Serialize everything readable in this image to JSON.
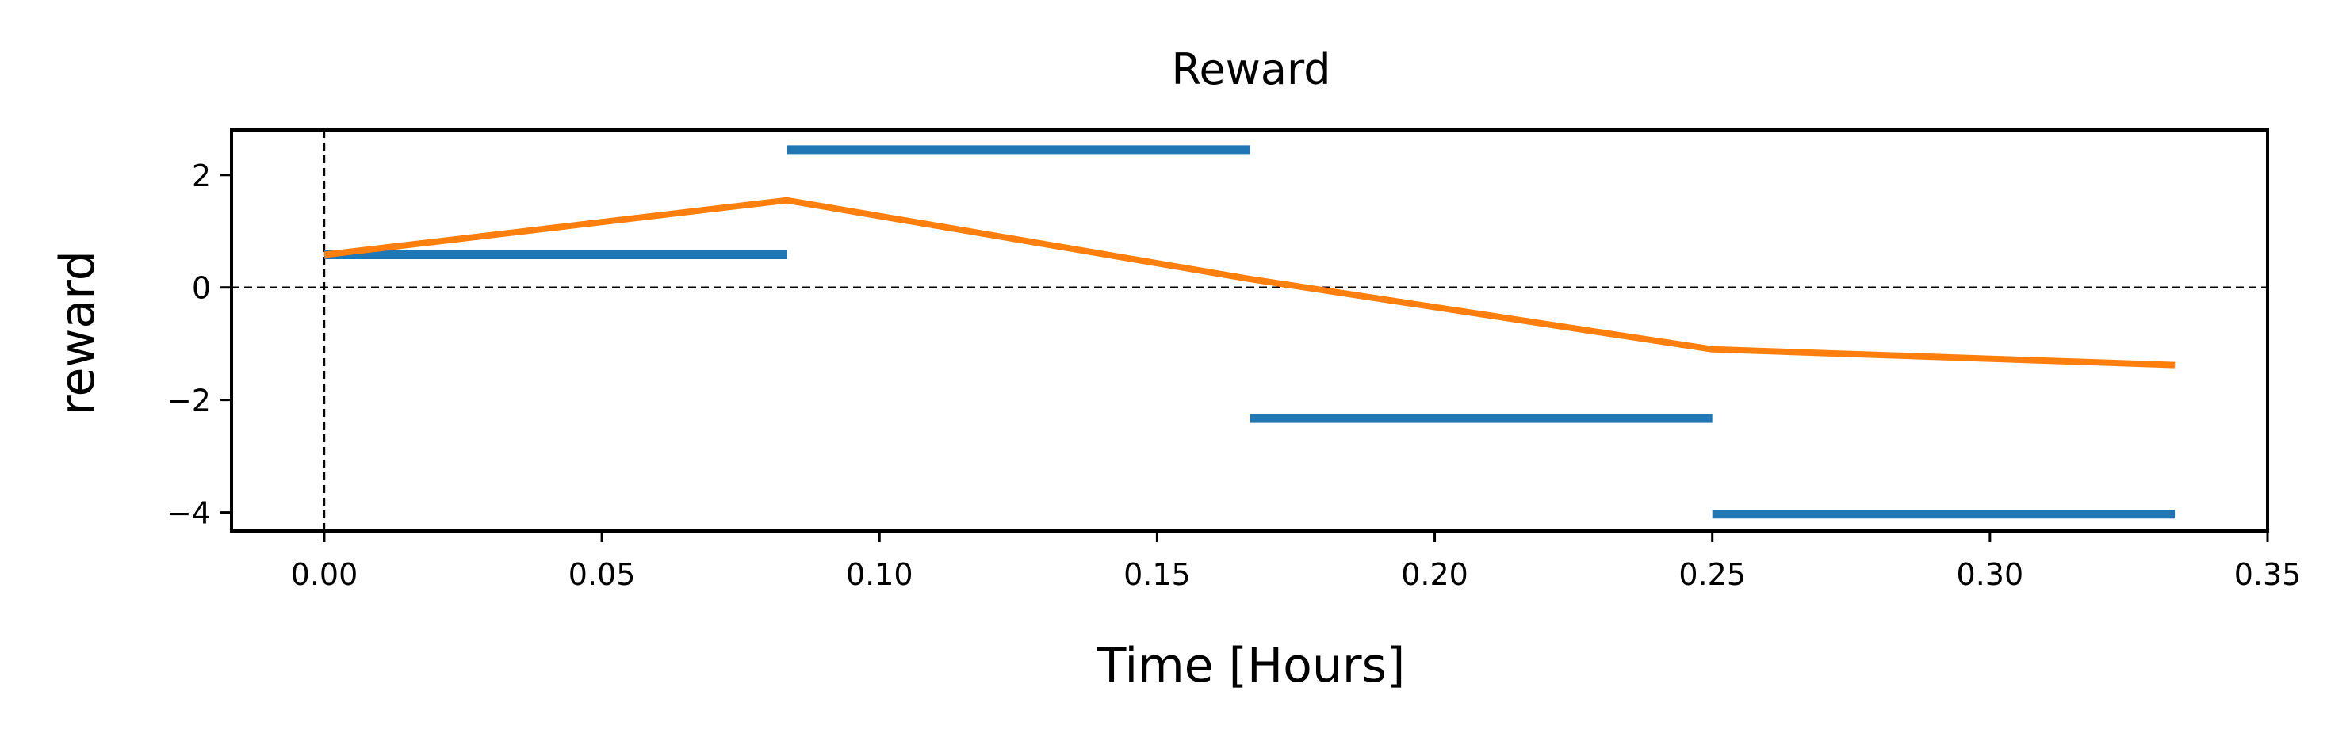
{
  "chart_data": {
    "type": "line",
    "title": "Reward",
    "xlabel": "Time [Hours]",
    "ylabel": "reward",
    "xlim": [
      -0.0167,
      0.35
    ],
    "ylim": [
      -4.33,
      2.8
    ],
    "xticks": [
      0.0,
      0.05,
      0.1,
      0.15,
      0.2,
      0.25,
      0.3,
      0.35
    ],
    "xtick_labels": [
      "0.00",
      "0.05",
      "0.10",
      "0.15",
      "0.20",
      "0.25",
      "0.30",
      "0.35"
    ],
    "yticks": [
      2,
      0,
      -2,
      -4
    ],
    "ytick_labels": [
      "2",
      "0",
      "−2",
      "−4"
    ],
    "grid": false,
    "reference_lines": {
      "horizontal_y": 0,
      "vertical_x": 0,
      "style": "dashed"
    },
    "series": [
      {
        "style": "step-segments",
        "color": "#1f77b4",
        "segments": [
          {
            "x0": 0.0,
            "x1": 0.0833,
            "y": 0.58
          },
          {
            "x0": 0.0833,
            "x1": 0.1667,
            "y": 2.45
          },
          {
            "x0": 0.1667,
            "x1": 0.25,
            "y": -2.33
          },
          {
            "x0": 0.25,
            "x1": 0.3333,
            "y": -4.03
          }
        ]
      },
      {
        "style": "line",
        "color": "#ff7f0e",
        "x": [
          0.0,
          0.0833,
          0.1667,
          0.25,
          0.3333
        ],
        "y": [
          0.58,
          1.55,
          0.15,
          -1.1,
          -1.38
        ]
      }
    ]
  }
}
